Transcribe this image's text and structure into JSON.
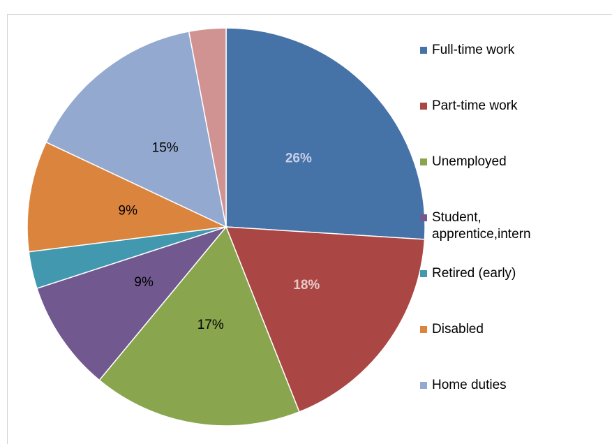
{
  "chart_data": {
    "type": "pie",
    "categories": [
      "Full-time work",
      "Part-time work",
      "Unemployed",
      "Student, apprentice,intern",
      "Retired (early)",
      "Disabled",
      "Home duties",
      null
    ],
    "values": [
      26,
      18,
      17,
      9,
      3,
      9,
      15,
      3
    ],
    "value_labels": [
      "26%",
      "18%",
      "17%",
      "9%",
      null,
      "9%",
      "15%",
      null
    ],
    "value_label_colors": [
      "#c8cfe8",
      "#e8c9c8",
      "#000000",
      "#000000",
      null,
      "#000000",
      "#000000",
      null
    ],
    "value_label_bold": [
      true,
      true,
      false,
      false,
      null,
      false,
      false,
      null
    ],
    "colors": [
      "#4572a7",
      "#aa4643",
      "#89a54e",
      "#71588f",
      "#4198af",
      "#db843d",
      "#93a9cf",
      "#d19392"
    ],
    "legend": "right"
  }
}
